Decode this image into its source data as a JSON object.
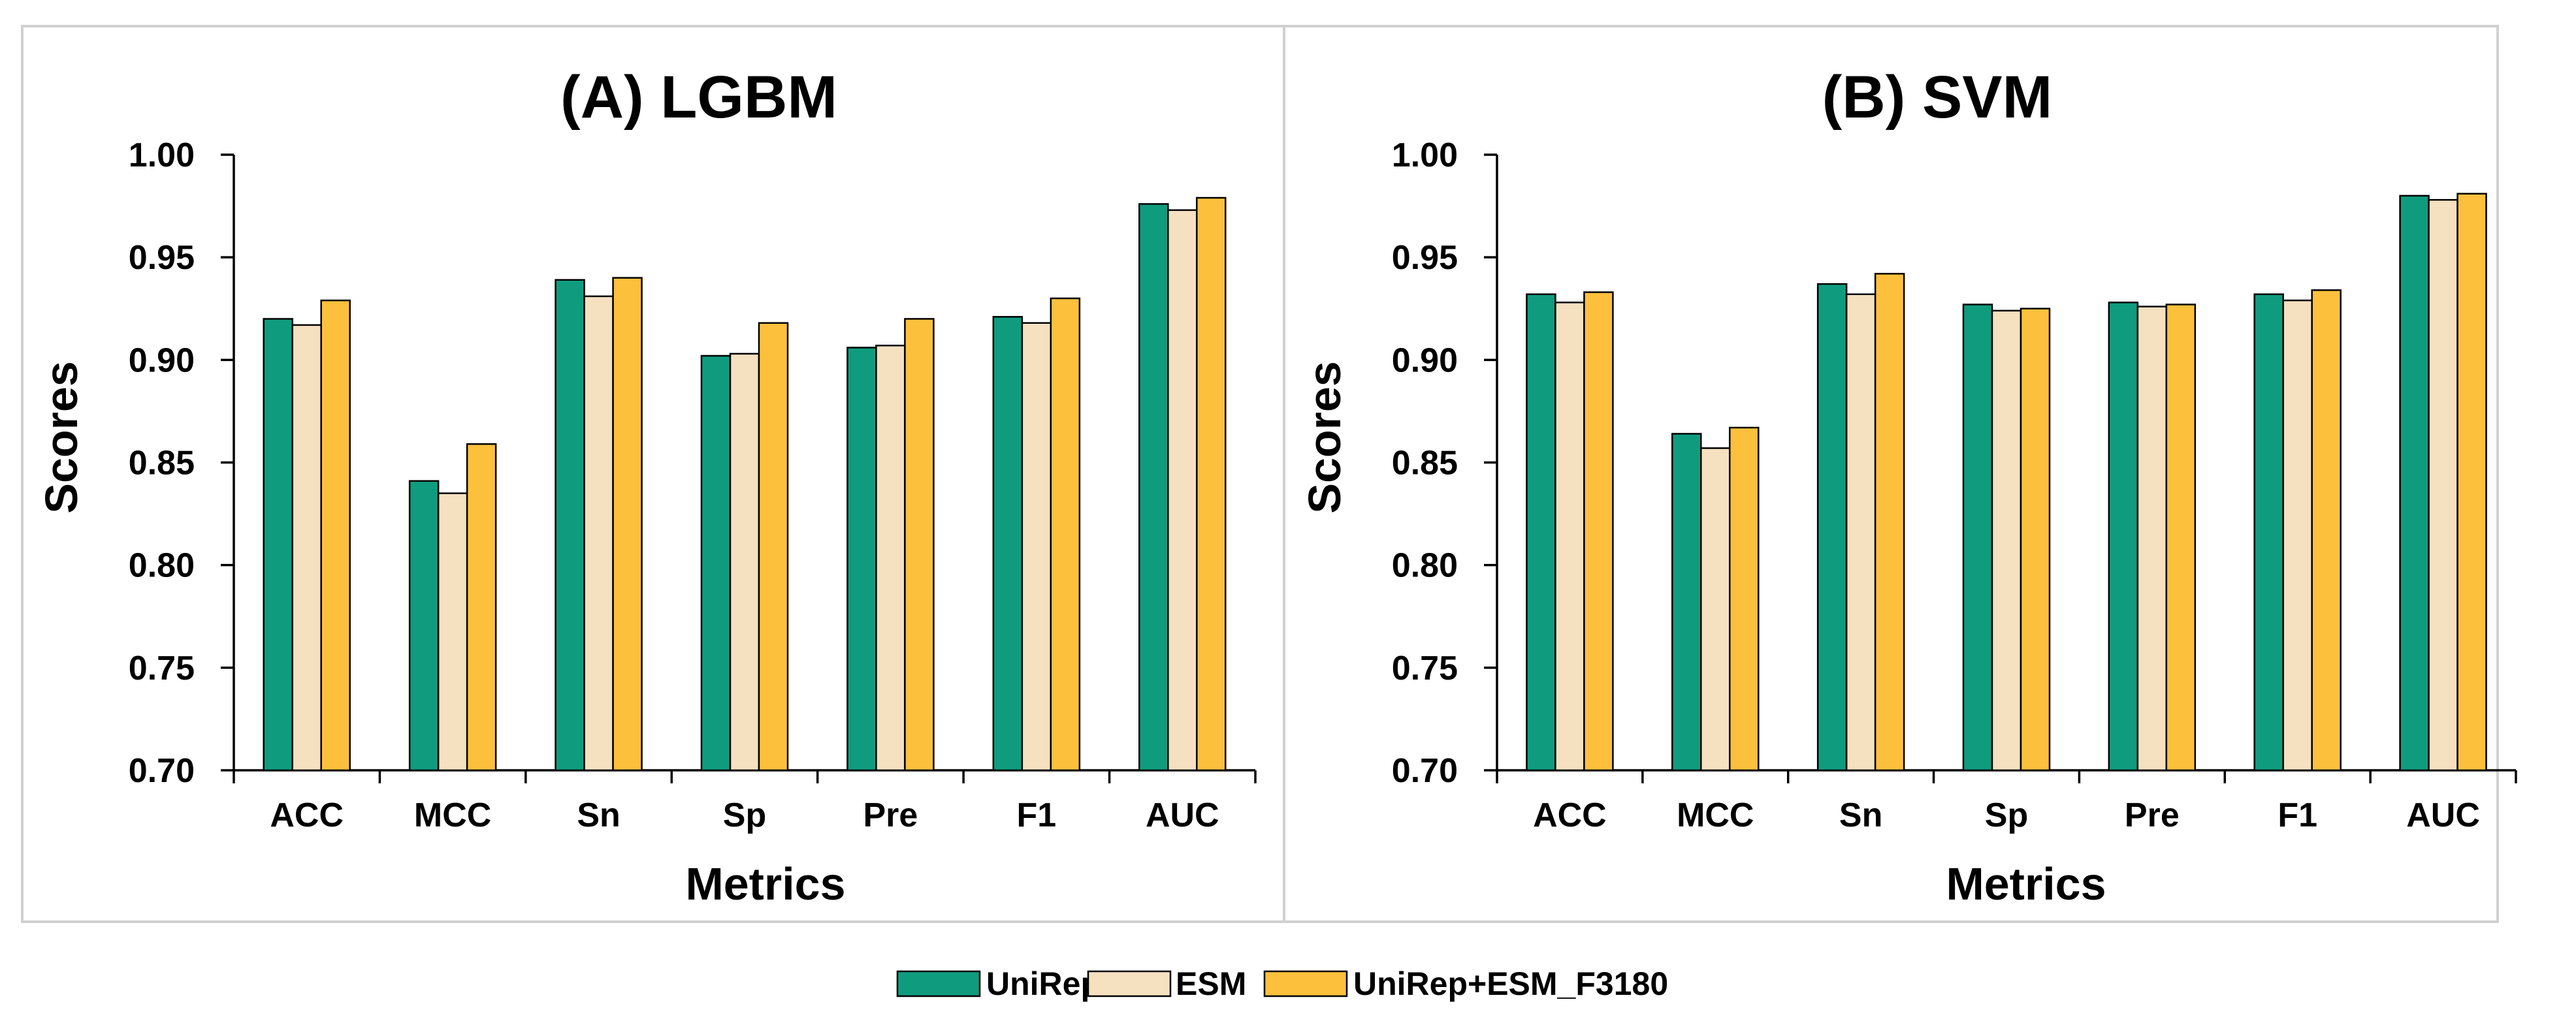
{
  "colors": {
    "UniRep": "#0f9c7e",
    "ESM": "#f5e1c0",
    "UniRep+ESM_F3180": "#fcc03c"
  },
  "chart_data": [
    {
      "type": "bar",
      "title": "(A) LGBM",
      "xlabel": "Metrics",
      "ylabel": "Scores",
      "ylim": [
        0.7,
        1.0
      ],
      "yticks": [
        "0.70",
        "0.75",
        "0.80",
        "0.85",
        "0.90",
        "0.95",
        "1.00"
      ],
      "categories": [
        "ACC",
        "MCC",
        "Sn",
        "Sp",
        "Pre",
        "F1",
        "AUC"
      ],
      "series": [
        {
          "name": "UniRep",
          "values": [
            0.92,
            0.841,
            0.939,
            0.902,
            0.906,
            0.921,
            0.976
          ]
        },
        {
          "name": "ESM",
          "values": [
            0.917,
            0.835,
            0.931,
            0.903,
            0.907,
            0.918,
            0.973
          ]
        },
        {
          "name": "UniRep+ESM_F3180",
          "values": [
            0.929,
            0.859,
            0.94,
            0.918,
            0.92,
            0.93,
            0.979
          ]
        }
      ]
    },
    {
      "type": "bar",
      "title": "(B) SVM",
      "xlabel": "Metrics",
      "ylabel": "Scores",
      "ylim": [
        0.7,
        1.0
      ],
      "yticks": [
        "0.70",
        "0.75",
        "0.80",
        "0.85",
        "0.90",
        "0.95",
        "1.00"
      ],
      "categories": [
        "ACC",
        "MCC",
        "Sn",
        "Sp",
        "Pre",
        "F1",
        "AUC"
      ],
      "series": [
        {
          "name": "UniRep",
          "values": [
            0.932,
            0.864,
            0.937,
            0.927,
            0.928,
            0.932,
            0.98
          ]
        },
        {
          "name": "ESM",
          "values": [
            0.928,
            0.857,
            0.932,
            0.924,
            0.926,
            0.929,
            0.978
          ]
        },
        {
          "name": "UniRep+ESM_F3180",
          "values": [
            0.933,
            0.867,
            0.942,
            0.925,
            0.927,
            0.934,
            0.981
          ]
        }
      ]
    }
  ],
  "legend": {
    "entries": [
      "UniRep",
      "ESM",
      "UniRep+ESM_F3180"
    ]
  }
}
